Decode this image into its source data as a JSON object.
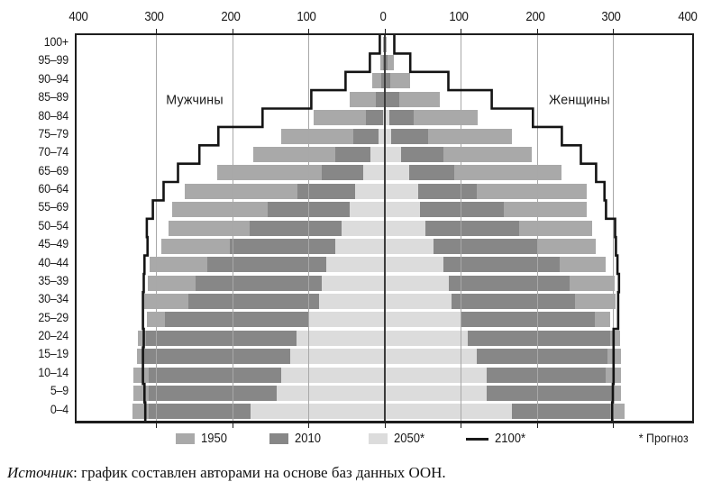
{
  "axis": {
    "tick_labels": [
      "400",
      "300",
      "200",
      "100",
      "0",
      "100",
      "200",
      "300",
      "400"
    ],
    "tick_units": [
      -400,
      -300,
      -200,
      -100,
      0,
      100,
      200,
      300,
      400
    ],
    "grid_interval": 100,
    "xlim": [
      -400,
      400
    ],
    "grid": "on"
  },
  "labels": {
    "male": "Мужчины",
    "female": "Женщины"
  },
  "legend": {
    "items": [
      {
        "label": "1950",
        "color": "#a9a9a9",
        "type": "box"
      },
      {
        "label": "2010",
        "color": "#878787",
        "type": "box"
      },
      {
        "label": "2050*",
        "color": "#dcdcdc",
        "type": "box"
      },
      {
        "label": "2100*",
        "color": "#1a1a1a",
        "type": "line"
      }
    ],
    "note": "* Прогноз"
  },
  "source": {
    "prefix": "Источник",
    "rest": ": график составлен авторами на основе баз данных ООН."
  },
  "colors": {
    "bar_1950": "#a9a9a9",
    "bar_2010": "#878787",
    "bar_2050": "#dcdcdc",
    "line_2100": "#141414",
    "gridline": "#a8a8a8",
    "zero_axis": "#3c3c3c",
    "frame": "#1d1d1d"
  },
  "chart_data": {
    "type": "bar",
    "subtype": "population-pyramid",
    "title": "",
    "xlabel": "",
    "ylabel": "",
    "xlim": [
      -400,
      400
    ],
    "legend_position": "bottom",
    "series_years": [
      "1950",
      "2010",
      "2050",
      "2100"
    ],
    "encoding": "Values are the outer boundaries (extent from the zero axis, in chart units) of each colored zone as drawn for every age row; zones from center outward: 2050 (light), 2010 (dark), 1950 (medium); 2100 is the black step line.",
    "age_groups": [
      "100+",
      "95–99",
      "90–94",
      "85–89",
      "80–84",
      "75–79",
      "70–74",
      "65–69",
      "60–64",
      "55–69",
      "50–54",
      "45–49",
      "40–44",
      "35–39",
      "30–34",
      "25–29",
      "20–24",
      "15–19",
      "10–14",
      "5–9",
      "0–4"
    ],
    "male": {
      "b2050": [
        0,
        0,
        0,
        0,
        2,
        8,
        18,
        28,
        38,
        45,
        56,
        65,
        76,
        82,
        86,
        99,
        115,
        124,
        136,
        141,
        176
      ],
      "b2010": [
        1,
        2,
        4,
        11,
        24,
        41,
        65,
        82,
        114,
        153,
        177,
        203,
        232,
        248,
        257,
        288,
        313,
        317,
        310,
        310,
        310
      ],
      "b1950": [
        2,
        5,
        16,
        45,
        93,
        136,
        172,
        219,
        262,
        279,
        284,
        293,
        308,
        311,
        315,
        312,
        324,
        325,
        329,
        329,
        331
      ],
      "line2100": [
        6,
        19,
        51,
        96,
        160,
        218,
        243,
        271,
        290,
        304,
        312,
        311,
        315,
        316,
        317,
        317,
        316,
        317,
        317,
        315,
        314
      ]
    },
    "female": {
      "b2050": [
        0,
        0,
        0,
        2,
        7,
        9,
        22,
        32,
        44,
        47,
        54,
        65,
        77,
        85,
        88,
        100,
        110,
        121,
        134,
        134,
        168
      ],
      "b2010": [
        1,
        4,
        8,
        20,
        39,
        57,
        77,
        92,
        121,
        157,
        177,
        202,
        230,
        243,
        250,
        276,
        297,
        293,
        291,
        299,
        297
      ],
      "b1950": [
        3,
        12,
        34,
        73,
        123,
        167,
        194,
        233,
        266,
        266,
        273,
        278,
        291,
        302,
        303,
        297,
        309,
        311,
        311,
        311,
        315
      ],
      "line2100": [
        13,
        34,
        84,
        141,
        195,
        233,
        258,
        278,
        289,
        291,
        303,
        304,
        306,
        308,
        307,
        307,
        301,
        301,
        301,
        300,
        299
      ]
    }
  }
}
